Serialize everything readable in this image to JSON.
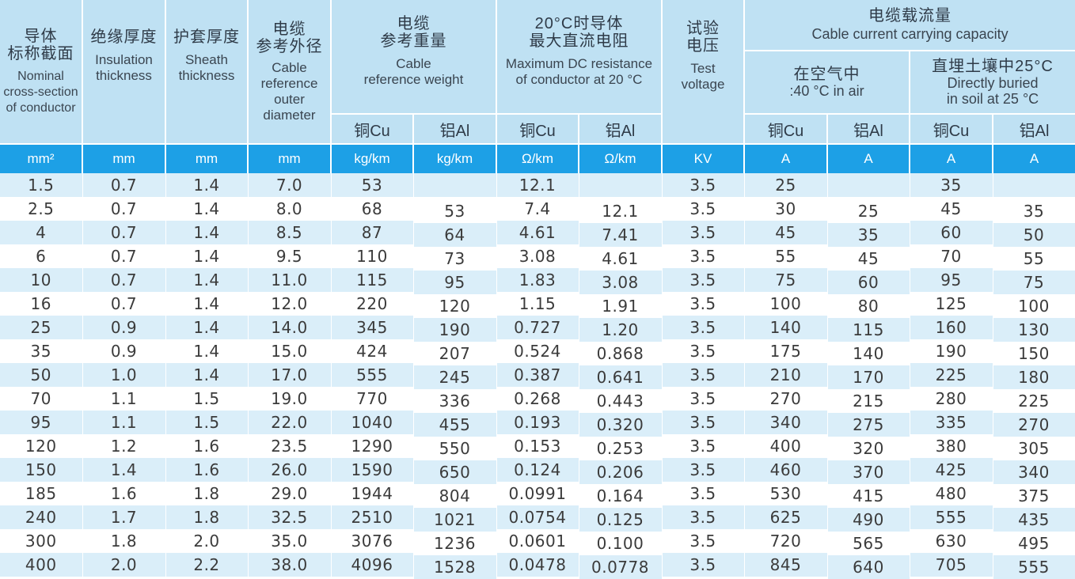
{
  "header": {
    "cross_section": {
      "zh1": "导体",
      "zh2": "标称截面",
      "en1": "Nominal",
      "en2": "cross-section",
      "en3": "of conductor"
    },
    "insulation": {
      "zh": "绝缘厚度",
      "en1": "Insulation",
      "en2": "thickness"
    },
    "sheath": {
      "zh": "护套厚度",
      "en1": "Sheath",
      "en2": "thickness"
    },
    "diameter": {
      "zh1": "电缆",
      "zh2": "参考外径",
      "en1": "Cable",
      "en2": "reference",
      "en3": "outer",
      "en4": "diameter"
    },
    "weight": {
      "zh1": "电缆",
      "zh2": "参考重量",
      "en1": "Cable",
      "en2": "reference weight",
      "cu": "铜Cu",
      "al": "铝Al"
    },
    "resistance": {
      "zh1": "20°C时导体",
      "zh2": "最大直流电阻",
      "en1": "Maximum DC resistance",
      "en2": "of conductor at 20 °C",
      "cu": "铜Cu",
      "al": "铝Al"
    },
    "test_voltage": {
      "zh1": "试验",
      "zh2": "电压",
      "en1": "Test",
      "en2": "voltage"
    },
    "capacity": {
      "zh": "电缆载流量",
      "en": "Cable current carrying capacity"
    },
    "air": {
      "zh": "在空气中",
      "en": ":40 °C in air",
      "cu": "铜Cu",
      "al": "铝Al"
    },
    "soil": {
      "zh": "直埋土壤中25°C",
      "en1": "Directly buried",
      "en2": "in soil at 25 °C",
      "cu": "铜Cu",
      "al": "铝Al"
    }
  },
  "units": [
    "mm²",
    "mm",
    "mm",
    "mm",
    "kg/km",
    "kg/km",
    "Ω/km",
    "Ω/km",
    "KV",
    "A",
    "A",
    "A",
    "A"
  ],
  "rows": [
    [
      "1.5",
      "0.7",
      "1.4",
      "7.0",
      "53",
      "",
      "12.1",
      "",
      "3.5",
      "25",
      "",
      "35",
      ""
    ],
    [
      "2.5",
      "0.7",
      "1.4",
      "8.0",
      "68",
      "53",
      "7.4",
      "12.1",
      "3.5",
      "30",
      "25",
      "45",
      "35"
    ],
    [
      "4",
      "0.7",
      "1.4",
      "8.5",
      "87",
      "64",
      "4.61",
      "7.41",
      "3.5",
      "45",
      "35",
      "60",
      "50"
    ],
    [
      "6",
      "0.7",
      "1.4",
      "9.5",
      "110",
      "73",
      "3.08",
      "4.61",
      "3.5",
      "55",
      "45",
      "70",
      "55"
    ],
    [
      "10",
      "0.7",
      "1.4",
      "11.0",
      "115",
      "95",
      "1.83",
      "3.08",
      "3.5",
      "75",
      "60",
      "95",
      "75"
    ],
    [
      "16",
      "0.7",
      "1.4",
      "12.0",
      "220",
      "120",
      "1.15",
      "1.91",
      "3.5",
      "100",
      "80",
      "125",
      "100"
    ],
    [
      "25",
      "0.9",
      "1.4",
      "14.0",
      "345",
      "190",
      "0.727",
      "1.20",
      "3.5",
      "140",
      "115",
      "160",
      "130"
    ],
    [
      "35",
      "0.9",
      "1.4",
      "15.0",
      "424",
      "207",
      "0.524",
      "0.868",
      "3.5",
      "175",
      "140",
      "190",
      "150"
    ],
    [
      "50",
      "1.0",
      "1.4",
      "17.0",
      "555",
      "245",
      "0.387",
      "0.641",
      "3.5",
      "210",
      "170",
      "225",
      "180"
    ],
    [
      "70",
      "1.1",
      "1.5",
      "19.0",
      "770",
      "336",
      "0.268",
      "0.443",
      "3.5",
      "270",
      "215",
      "280",
      "225"
    ],
    [
      "95",
      "1.1",
      "1.5",
      "22.0",
      "1040",
      "455",
      "0.193",
      "0.320",
      "3.5",
      "340",
      "275",
      "335",
      "270"
    ],
    [
      "120",
      "1.2",
      "1.6",
      "23.5",
      "1290",
      "550",
      "0.153",
      "0.253",
      "3.5",
      "400",
      "320",
      "380",
      "305"
    ],
    [
      "150",
      "1.4",
      "1.6",
      "26.0",
      "1590",
      "650",
      "0.124",
      "0.206",
      "3.5",
      "460",
      "370",
      "425",
      "340"
    ],
    [
      "185",
      "1.6",
      "1.8",
      "29.0",
      "1944",
      "804",
      "0.0991",
      "0.164",
      "3.5",
      "530",
      "415",
      "480",
      "375"
    ],
    [
      "240",
      "1.7",
      "1.8",
      "32.5",
      "2510",
      "1021",
      "0.0754",
      "0.125",
      "3.5",
      "625",
      "490",
      "555",
      "435"
    ],
    [
      "300",
      "1.8",
      "2.0",
      "35.0",
      "3076",
      "1236",
      "0.0601",
      "0.100",
      "3.5",
      "720",
      "565",
      "630",
      "495"
    ],
    [
      "400",
      "2.0",
      "2.2",
      "38.0",
      "4096",
      "1528",
      "0.0478",
      "0.0778",
      "3.5",
      "845",
      "640",
      "705",
      "555"
    ]
  ]
}
